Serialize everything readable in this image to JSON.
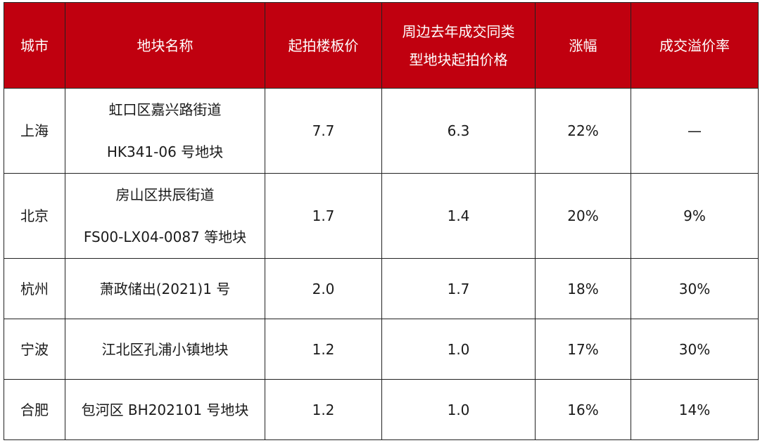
{
  "headers": [
    "城市",
    "地块名称",
    "起拍楼板价",
    "周边去年成交同类型地块起拍价格",
    "涨幅",
    "成交溢价率"
  ],
  "header_lines": {
    "col4_line1": "周边去年成交同类",
    "col4_line2": "型地块起拍价格"
  },
  "rows": [
    {
      "city": "上海",
      "parcel_line1": "虹口区嘉兴路街道",
      "parcel_line2": "HK341-06 号地块",
      "start_price": "7.7",
      "nearby_price": "6.3",
      "increase": "22%",
      "premium": "—"
    },
    {
      "city": "北京",
      "parcel_line1": "房山区拱辰街道",
      "parcel_line2": "FS00-LX04-0087 等地块",
      "start_price": "1.7",
      "nearby_price": "1.4",
      "increase": "20%",
      "premium": "9%"
    },
    {
      "city": "杭州",
      "parcel_line1": "萧政储出(2021)1 号",
      "start_price": "2.0",
      "nearby_price": "1.7",
      "increase": "18%",
      "premium": "30%"
    },
    {
      "city": "宁波",
      "parcel_line1": "江北区孔浦小镇地块",
      "start_price": "1.2",
      "nearby_price": "1.0",
      "increase": "17%",
      "premium": "30%"
    },
    {
      "city": "合肥",
      "parcel_line1": "包河区 BH202101 号地块",
      "start_price": "1.2",
      "nearby_price": "1.0",
      "increase": "16%",
      "premium": "14%"
    }
  ],
  "colors": {
    "header_bg": "#c0000f",
    "header_text": "#ffffff",
    "border": "#222222"
  }
}
